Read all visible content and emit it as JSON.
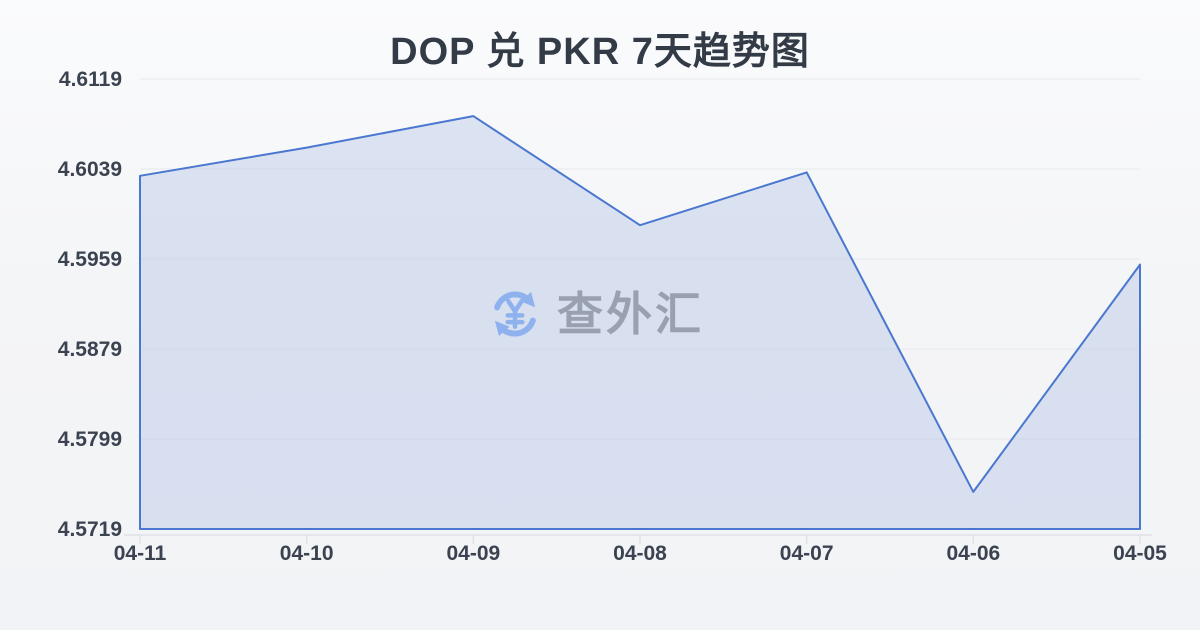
{
  "title": "DOP 兑 PKR 7天趋势图",
  "watermark": {
    "icon": "currency-exchange-icon",
    "text": "查外汇"
  },
  "chart_data": {
    "type": "area",
    "title": "DOP 兑 PKR 7天趋势图",
    "categories": [
      "04-11",
      "04-10",
      "04-09",
      "04-08",
      "04-07",
      "04-06",
      "04-05"
    ],
    "series": [
      {
        "name": "DOP/PKR",
        "values": [
          4.6033,
          4.6058,
          4.6086,
          4.5989,
          4.6036,
          4.5752,
          4.5954
        ]
      }
    ],
    "xlabel": "",
    "ylabel": "",
    "ylim": [
      4.5719,
      4.6119
    ],
    "y_ticks": [
      "4.6119",
      "4.6039",
      "4.5959",
      "4.5879",
      "4.5799",
      "4.5719"
    ],
    "grid": true,
    "legend": false
  },
  "colors": {
    "background": "#f4f5f7",
    "title": "#333b47",
    "axis_label": "#3c4350",
    "grid_line": "#e7e9ed",
    "axis_line": "#dfe2e8",
    "series_line": "#4a77cf",
    "series_fill": "rgba(74,119,207,0.16)",
    "watermark_text": "#99a1b0",
    "watermark_icon": "#8fb2ee"
  }
}
